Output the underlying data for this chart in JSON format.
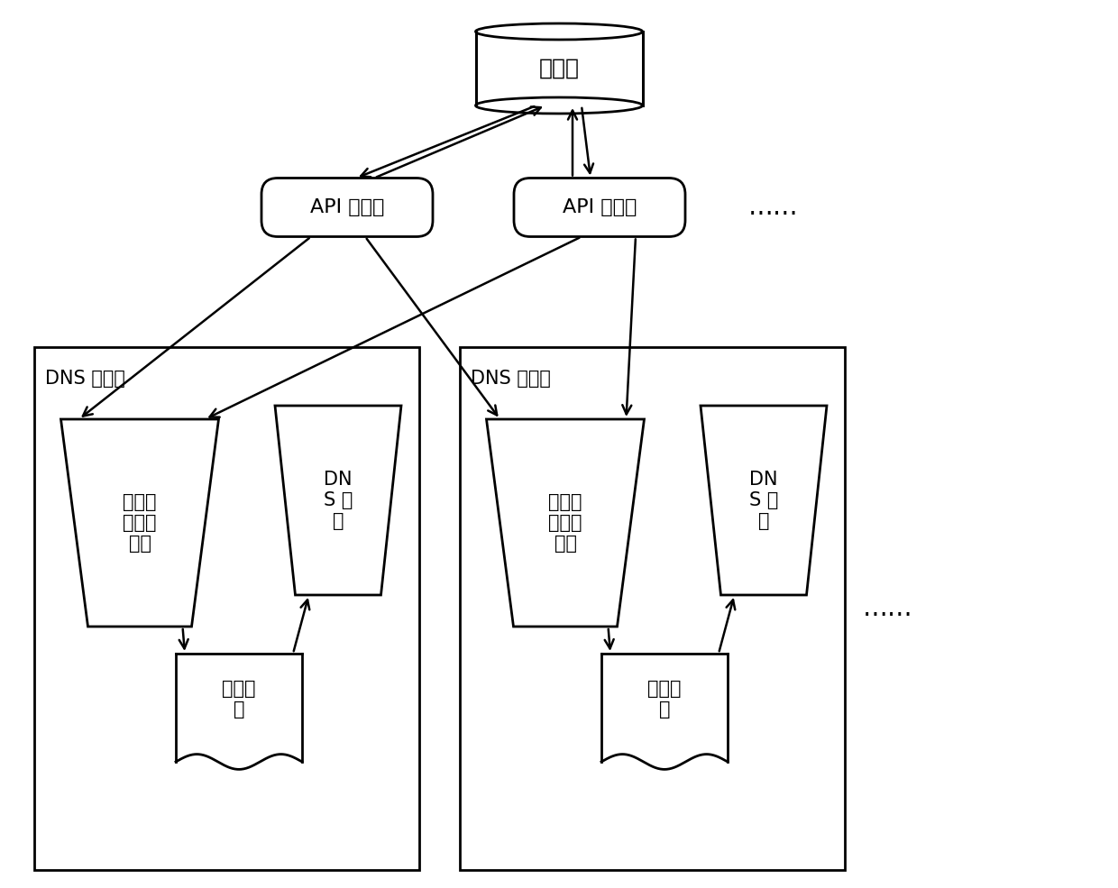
{
  "bg_color": "#ffffff",
  "line_color": "#000000",
  "db_label": "数据库",
  "api_label": "API 服务器",
  "dns_box_label": "DNS 服务器",
  "sync_label": "配置文\n件同步\n程序",
  "config_label": "配置文\n件",
  "dns_svc_label": "DN\nS 服\n务",
  "ellipsis": "……"
}
